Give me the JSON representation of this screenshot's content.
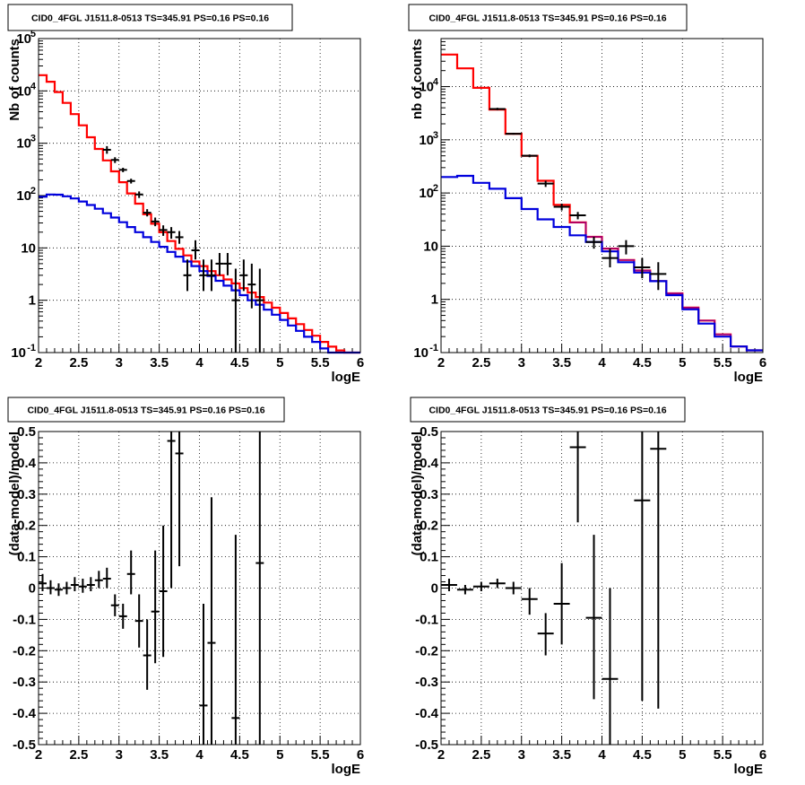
{
  "chart_data": [
    {
      "type": "line",
      "title": "CID0_4FGL J1511.8-0513 TS=345.91 PS=0.16 PS=0.16",
      "xlabel": "logE",
      "ylabel": "Nb of counts",
      "xlim": [
        2,
        6
      ],
      "ylim": [
        0.1,
        100000
      ],
      "y_log": true,
      "x_ticks": [
        "2",
        "2.5",
        "3",
        "3.5",
        "4",
        "4.5",
        "5",
        "5.5",
        "6"
      ],
      "y_ticks": [
        "10^-1",
        "1",
        "10",
        "10^2",
        "10^3",
        "10^4",
        "10^5"
      ],
      "grid": true,
      "series": [
        {
          "kind": "step",
          "color": "#ff0000",
          "bin_edges": [
            2.0,
            2.1,
            2.2,
            2.3,
            2.4,
            2.5,
            2.6,
            2.7,
            2.8,
            2.9,
            3.0,
            3.1,
            3.2,
            3.3,
            3.4,
            3.5,
            3.6,
            3.7,
            3.8,
            3.9,
            4.0,
            4.1,
            4.2,
            4.3,
            4.4,
            4.5,
            4.6,
            4.7,
            4.8,
            4.9,
            5.0,
            5.1,
            5.2,
            5.3,
            5.4,
            5.5,
            5.6,
            5.7,
            5.8,
            5.9,
            6.0
          ],
          "values": [
            20000,
            15000,
            9500,
            5900,
            3600,
            2200,
            1300,
            780,
            470,
            290,
            180,
            110,
            70,
            44,
            29,
            20,
            13.5,
            9.6,
            7.2,
            5.5,
            4.5,
            3.6,
            3.0,
            2.5,
            2.1,
            1.7,
            1.4,
            1.15,
            0.9,
            0.72,
            0.57,
            0.45,
            0.35,
            0.27,
            0.21,
            0.16,
            0.13,
            0.11,
            0.1,
            0.1
          ]
        },
        {
          "kind": "step",
          "color": "#0000dd",
          "bin_edges": [
            2.0,
            2.1,
            2.2,
            2.3,
            2.4,
            2.5,
            2.6,
            2.7,
            2.8,
            2.9,
            3.0,
            3.1,
            3.2,
            3.3,
            3.4,
            3.5,
            3.6,
            3.7,
            3.8,
            3.9,
            4.0,
            4.1,
            4.2,
            4.3,
            4.4,
            4.5,
            4.6,
            4.7,
            4.8,
            4.9,
            5.0,
            5.1,
            5.2,
            5.3,
            5.4,
            5.5,
            5.6,
            5.7,
            5.8,
            5.9,
            6.0
          ],
          "values": [
            95,
            105,
            104,
            97,
            88,
            77,
            66,
            56,
            46,
            38,
            31,
            25,
            20,
            16,
            13,
            10.5,
            8.4,
            6.8,
            5.5,
            4.5,
            3.6,
            2.9,
            2.35,
            1.9,
            1.55,
            1.25,
            1.0,
            0.82,
            0.66,
            0.53,
            0.42,
            0.33,
            0.26,
            0.2,
            0.16,
            0.12,
            0.1,
            0.1,
            0.1,
            0.1
          ]
        },
        {
          "kind": "points",
          "color": "#000000",
          "x": [
            2.85,
            2.95,
            3.05,
            3.15,
            3.25,
            3.35,
            3.45,
            3.55,
            3.65,
            3.75,
            3.85,
            3.95,
            4.05,
            4.15,
            4.25,
            4.35,
            4.45,
            4.55,
            4.65,
            4.75
          ],
          "y": [
            750,
            480,
            310,
            190,
            105,
            47,
            32,
            22,
            20,
            16,
            3,
            9,
            3,
            3,
            5,
            5,
            1,
            3,
            2,
            1
          ],
          "y_low": [
            630,
            420,
            280,
            170,
            90,
            40,
            26,
            17,
            15,
            12,
            1.5,
            6,
            1.5,
            1.5,
            3,
            3,
            0.1,
            1.5,
            0.7,
            0.1
          ],
          "y_high": [
            880,
            540,
            340,
            210,
            120,
            55,
            38,
            27,
            25,
            21,
            6,
            14,
            6,
            6,
            8,
            8,
            4,
            6,
            5,
            4
          ]
        }
      ]
    },
    {
      "type": "line",
      "title": "CID0_4FGL J1511.8-0513 TS=345.91 PS=0.16 PS=0.16",
      "xlabel": "logE",
      "ylabel": "nb of counts",
      "xlim": [
        2,
        6
      ],
      "ylim": [
        0.1,
        80000
      ],
      "y_log": true,
      "x_ticks": [
        "2",
        "2.5",
        "3",
        "3.5",
        "4",
        "4.5",
        "5",
        "5.5",
        "6"
      ],
      "y_ticks": [
        "10^-1",
        "1",
        "10",
        "10^2",
        "10^3",
        "10^4"
      ],
      "grid": true,
      "series": [
        {
          "kind": "step",
          "color": "#ff0000",
          "bin_edges": [
            2.0,
            2.2,
            2.4,
            2.6,
            2.8,
            3.0,
            3.2,
            3.4,
            3.6,
            3.8,
            4.0,
            4.2,
            4.4,
            4.6,
            4.8,
            5.0,
            5.2,
            5.4,
            5.6,
            5.8,
            6.0
          ],
          "values": [
            40000,
            22000,
            9500,
            3700,
            1300,
            500,
            170,
            60,
            28,
            15,
            9,
            5.5,
            3.5,
            2.2,
            1.3,
            0.7,
            0.4,
            0.22,
            0.13,
            0.11
          ],
          "overlay_color": "#7a00aa",
          "overlay_from": 3.6
        },
        {
          "kind": "step",
          "color": "#0000dd",
          "bin_edges": [
            2.0,
            2.2,
            2.4,
            2.6,
            2.8,
            3.0,
            3.2,
            3.4,
            3.6,
            3.8,
            4.0,
            4.2,
            4.4,
            4.6,
            4.8,
            5.0,
            5.2,
            5.4,
            5.6,
            5.8,
            6.0
          ],
          "values": [
            200,
            210,
            155,
            120,
            80,
            50,
            32,
            23,
            16,
            12,
            8,
            5,
            3.2,
            2.2,
            1.2,
            0.65,
            0.35,
            0.2,
            0.13,
            0.11
          ]
        },
        {
          "kind": "points",
          "color": "#000000",
          "x": [
            2.7,
            2.9,
            3.1,
            3.3,
            3.5,
            3.7,
            3.9,
            4.1,
            4.3,
            4.5,
            4.7
          ],
          "y": [
            3800,
            1300,
            500,
            150,
            55,
            38,
            12,
            6,
            10,
            4,
            3
          ],
          "y_low": [
            3600,
            1250,
            470,
            130,
            47,
            32,
            9,
            4,
            7,
            2.5,
            1.5
          ],
          "y_high": [
            4000,
            1350,
            530,
            170,
            63,
            44,
            15,
            9,
            13,
            6,
            5
          ],
          "x_half_width": 0.1
        }
      ]
    },
    {
      "type": "scatter",
      "title": "CID0_4FGL J1511.8-0513 TS=345.91 PS=0.16 PS=0.16",
      "xlabel": "logE",
      "ylabel": "(data-model)/model",
      "xlim": [
        2,
        6
      ],
      "ylim": [
        -0.5,
        0.5
      ],
      "x_ticks": [
        "2",
        "2.5",
        "3",
        "3.5",
        "4",
        "4.5",
        "5",
        "5.5",
        "6"
      ],
      "y_ticks": [
        "-0.5",
        "-0.4",
        "-0.3",
        "-0.2",
        "-0.1",
        "0",
        "0.1",
        "0.2",
        "0.3",
        "0.4",
        "0.5"
      ],
      "grid": true,
      "series": [
        {
          "kind": "points",
          "color": "#000000",
          "x": [
            2.05,
            2.15,
            2.25,
            2.35,
            2.45,
            2.55,
            2.65,
            2.75,
            2.85,
            2.95,
            3.05,
            3.15,
            3.25,
            3.35,
            3.45,
            3.55,
            3.65,
            3.75,
            4.05,
            4.15,
            4.45,
            4.75
          ],
          "y": [
            0.015,
            0.0,
            -0.005,
            0.0,
            0.01,
            0.005,
            0.01,
            0.025,
            0.03,
            -0.055,
            -0.09,
            0.045,
            -0.105,
            -0.215,
            -0.075,
            -0.01,
            0.47,
            0.43,
            -0.375,
            -0.175,
            -0.415,
            0.08
          ],
          "y_low": [
            -0.01,
            -0.02,
            -0.025,
            -0.02,
            -0.01,
            -0.015,
            -0.01,
            0.0,
            0.0,
            -0.09,
            -0.13,
            -0.02,
            -0.19,
            -0.325,
            -0.24,
            -0.22,
            0.0,
            0.07,
            -0.5,
            -0.5,
            -0.5,
            -0.5
          ],
          "y_high": [
            0.045,
            0.025,
            0.015,
            0.02,
            0.035,
            0.03,
            0.035,
            0.055,
            0.065,
            -0.02,
            -0.05,
            0.12,
            -0.02,
            -0.1,
            0.12,
            0.2,
            0.5,
            0.5,
            -0.05,
            0.29,
            0.17,
            0.5
          ],
          "x_half_width": 0.05
        }
      ]
    },
    {
      "type": "scatter",
      "title": "CID0_4FGL J1511.8-0513 TS=345.91 PS=0.16 PS=0.16",
      "xlabel": "logE",
      "ylabel": "(data-model)/model",
      "xlim": [
        2,
        6
      ],
      "ylim": [
        -0.5,
        0.5
      ],
      "x_ticks": [
        "2",
        "2.5",
        "3",
        "3.5",
        "4",
        "4.5",
        "5",
        "5.5",
        "6"
      ],
      "y_ticks": [
        "-0.5",
        "-0.4",
        "-0.3",
        "-0.2",
        "-0.1",
        "0",
        "0.1",
        "0.2",
        "0.3",
        "0.4",
        "0.5"
      ],
      "grid": true,
      "series": [
        {
          "kind": "points",
          "color": "#000000",
          "x": [
            2.1,
            2.3,
            2.5,
            2.7,
            2.9,
            3.1,
            3.3,
            3.5,
            3.7,
            3.9,
            4.1,
            4.5,
            4.7
          ],
          "y": [
            0.01,
            -0.005,
            0.005,
            0.015,
            0.0,
            -0.035,
            -0.145,
            -0.05,
            0.45,
            -0.095,
            -0.29,
            0.28,
            0.445
          ],
          "y_low": [
            -0.01,
            -0.02,
            -0.01,
            0.0,
            -0.02,
            -0.085,
            -0.215,
            -0.18,
            0.21,
            -0.355,
            -0.5,
            -0.36,
            -0.385
          ],
          "y_high": [
            0.03,
            0.01,
            0.02,
            0.03,
            0.02,
            0.0,
            -0.08,
            0.08,
            0.5,
            0.17,
            0.0,
            0.5,
            0.5
          ],
          "x_half_width": 0.1
        }
      ]
    }
  ]
}
